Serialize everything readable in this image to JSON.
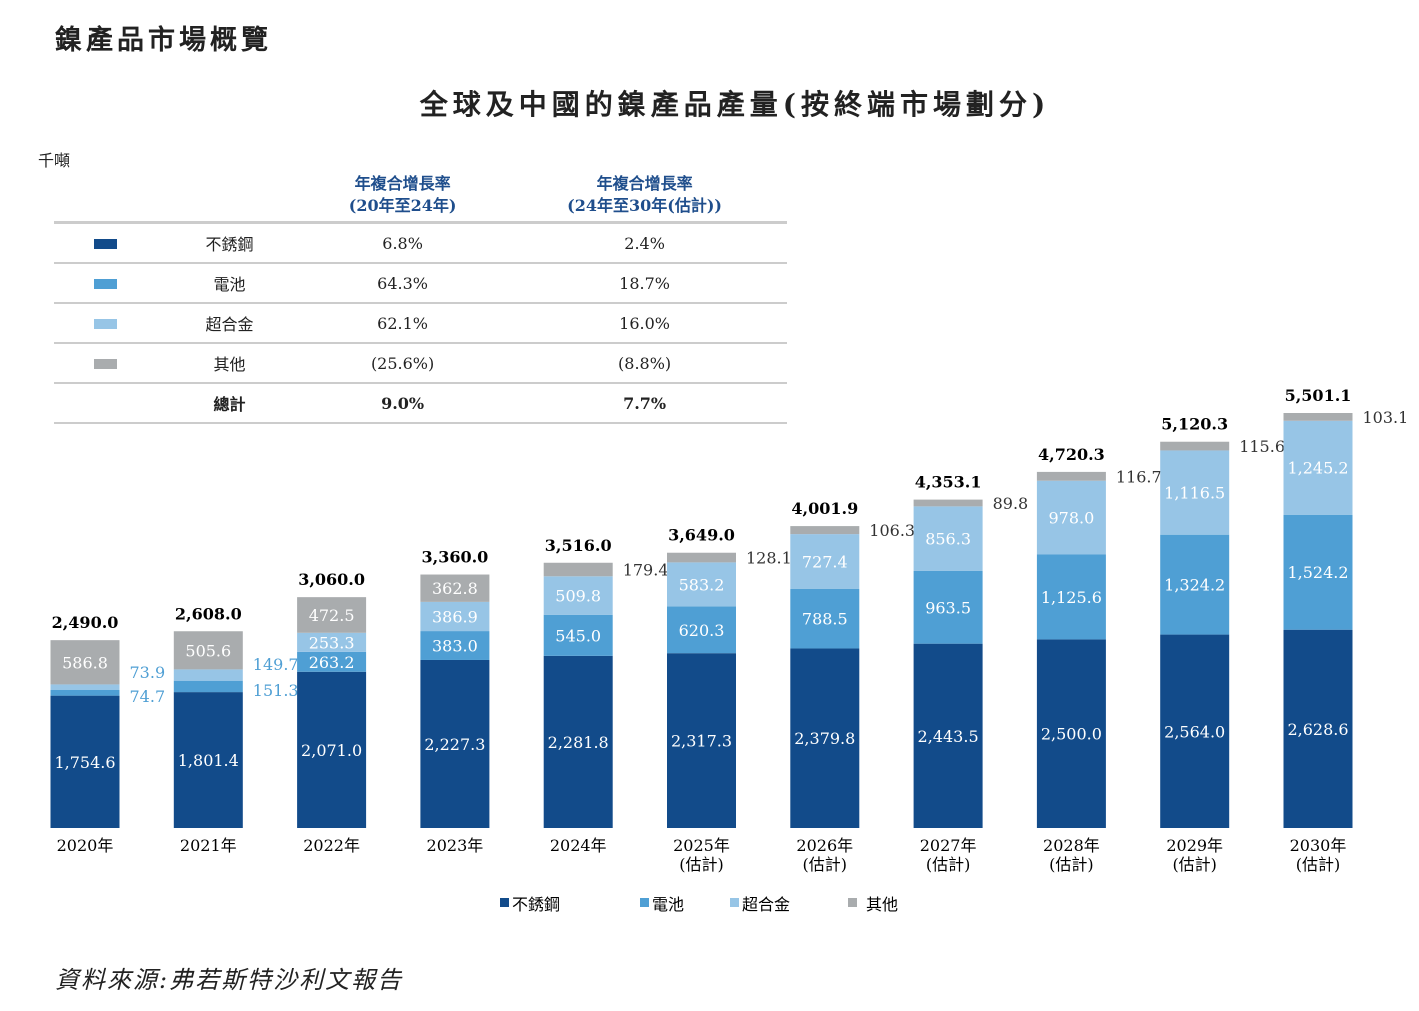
{
  "section_title": "鎳產品市場概覽",
  "chart_data": {
    "type": "bar",
    "stacked": true,
    "title": "全球及中國的鎳產品產量(按終端市場劃分)",
    "unit": "千噸",
    "categories": [
      "2020年",
      "2021年",
      "2022年",
      "2023年",
      "2024年",
      "2025年\n(估計)",
      "2026年\n(估計)",
      "2027年\n(估計)",
      "2028年\n(估計)",
      "2029年\n(估計)",
      "2030年\n(估計)"
    ],
    "series": [
      {
        "name": "不銹鋼",
        "color": "#124b8a",
        "values": [
          1754.6,
          1801.4,
          2071.0,
          2227.3,
          2281.8,
          2317.3,
          2379.8,
          2443.5,
          2500.0,
          2564.0,
          2628.6
        ]
      },
      {
        "name": "電池",
        "color": "#4f9fd4",
        "values": [
          74.7,
          151.3,
          263.2,
          383.0,
          545.0,
          620.3,
          788.5,
          963.5,
          1125.6,
          1324.2,
          1524.2
        ]
      },
      {
        "name": "超合金",
        "color": "#97c5e6",
        "values": [
          73.9,
          149.7,
          253.3,
          386.9,
          509.8,
          583.2,
          727.4,
          856.3,
          978.0,
          1116.5,
          1245.2
        ]
      },
      {
        "name": "其他",
        "color": "#a9acae",
        "values": [
          586.8,
          505.6,
          472.5,
          362.8,
          179.4,
          128.1,
          106.3,
          89.8,
          116.7,
          115.6,
          103.1
        ]
      }
    ],
    "totals": [
      "2,490.0",
      "2,608.0",
      "3,060.0",
      "3,360.0",
      "3,516.0",
      "3,649.0",
      "4,001.9",
      "4,353.1",
      "4,720.3",
      "5,120.3",
      "5,501.1"
    ],
    "legend_position": "bottom",
    "grid": false
  },
  "cagr_table": {
    "headers": [
      "年複合增長率\n(20年至24年)",
      "年複合增長率\n(24年至30年(估計))"
    ],
    "rows": [
      {
        "label": "不銹鋼",
        "color": "#124b8a",
        "a": "6.8%",
        "b": "2.4%"
      },
      {
        "label": "電池",
        "color": "#4f9fd4",
        "a": "64.3%",
        "b": "18.7%"
      },
      {
        "label": "超合金",
        "color": "#97c5e6",
        "a": "62.1%",
        "b": "16.0%"
      },
      {
        "label": "其他",
        "color": "#a9acae",
        "a": "(25.6%)",
        "b": "(8.8%)"
      },
      {
        "label": "總計",
        "a": "9.0%",
        "b": "7.7%",
        "bold": true
      }
    ]
  },
  "source": "資料來源:弗若斯特沙利文報告"
}
